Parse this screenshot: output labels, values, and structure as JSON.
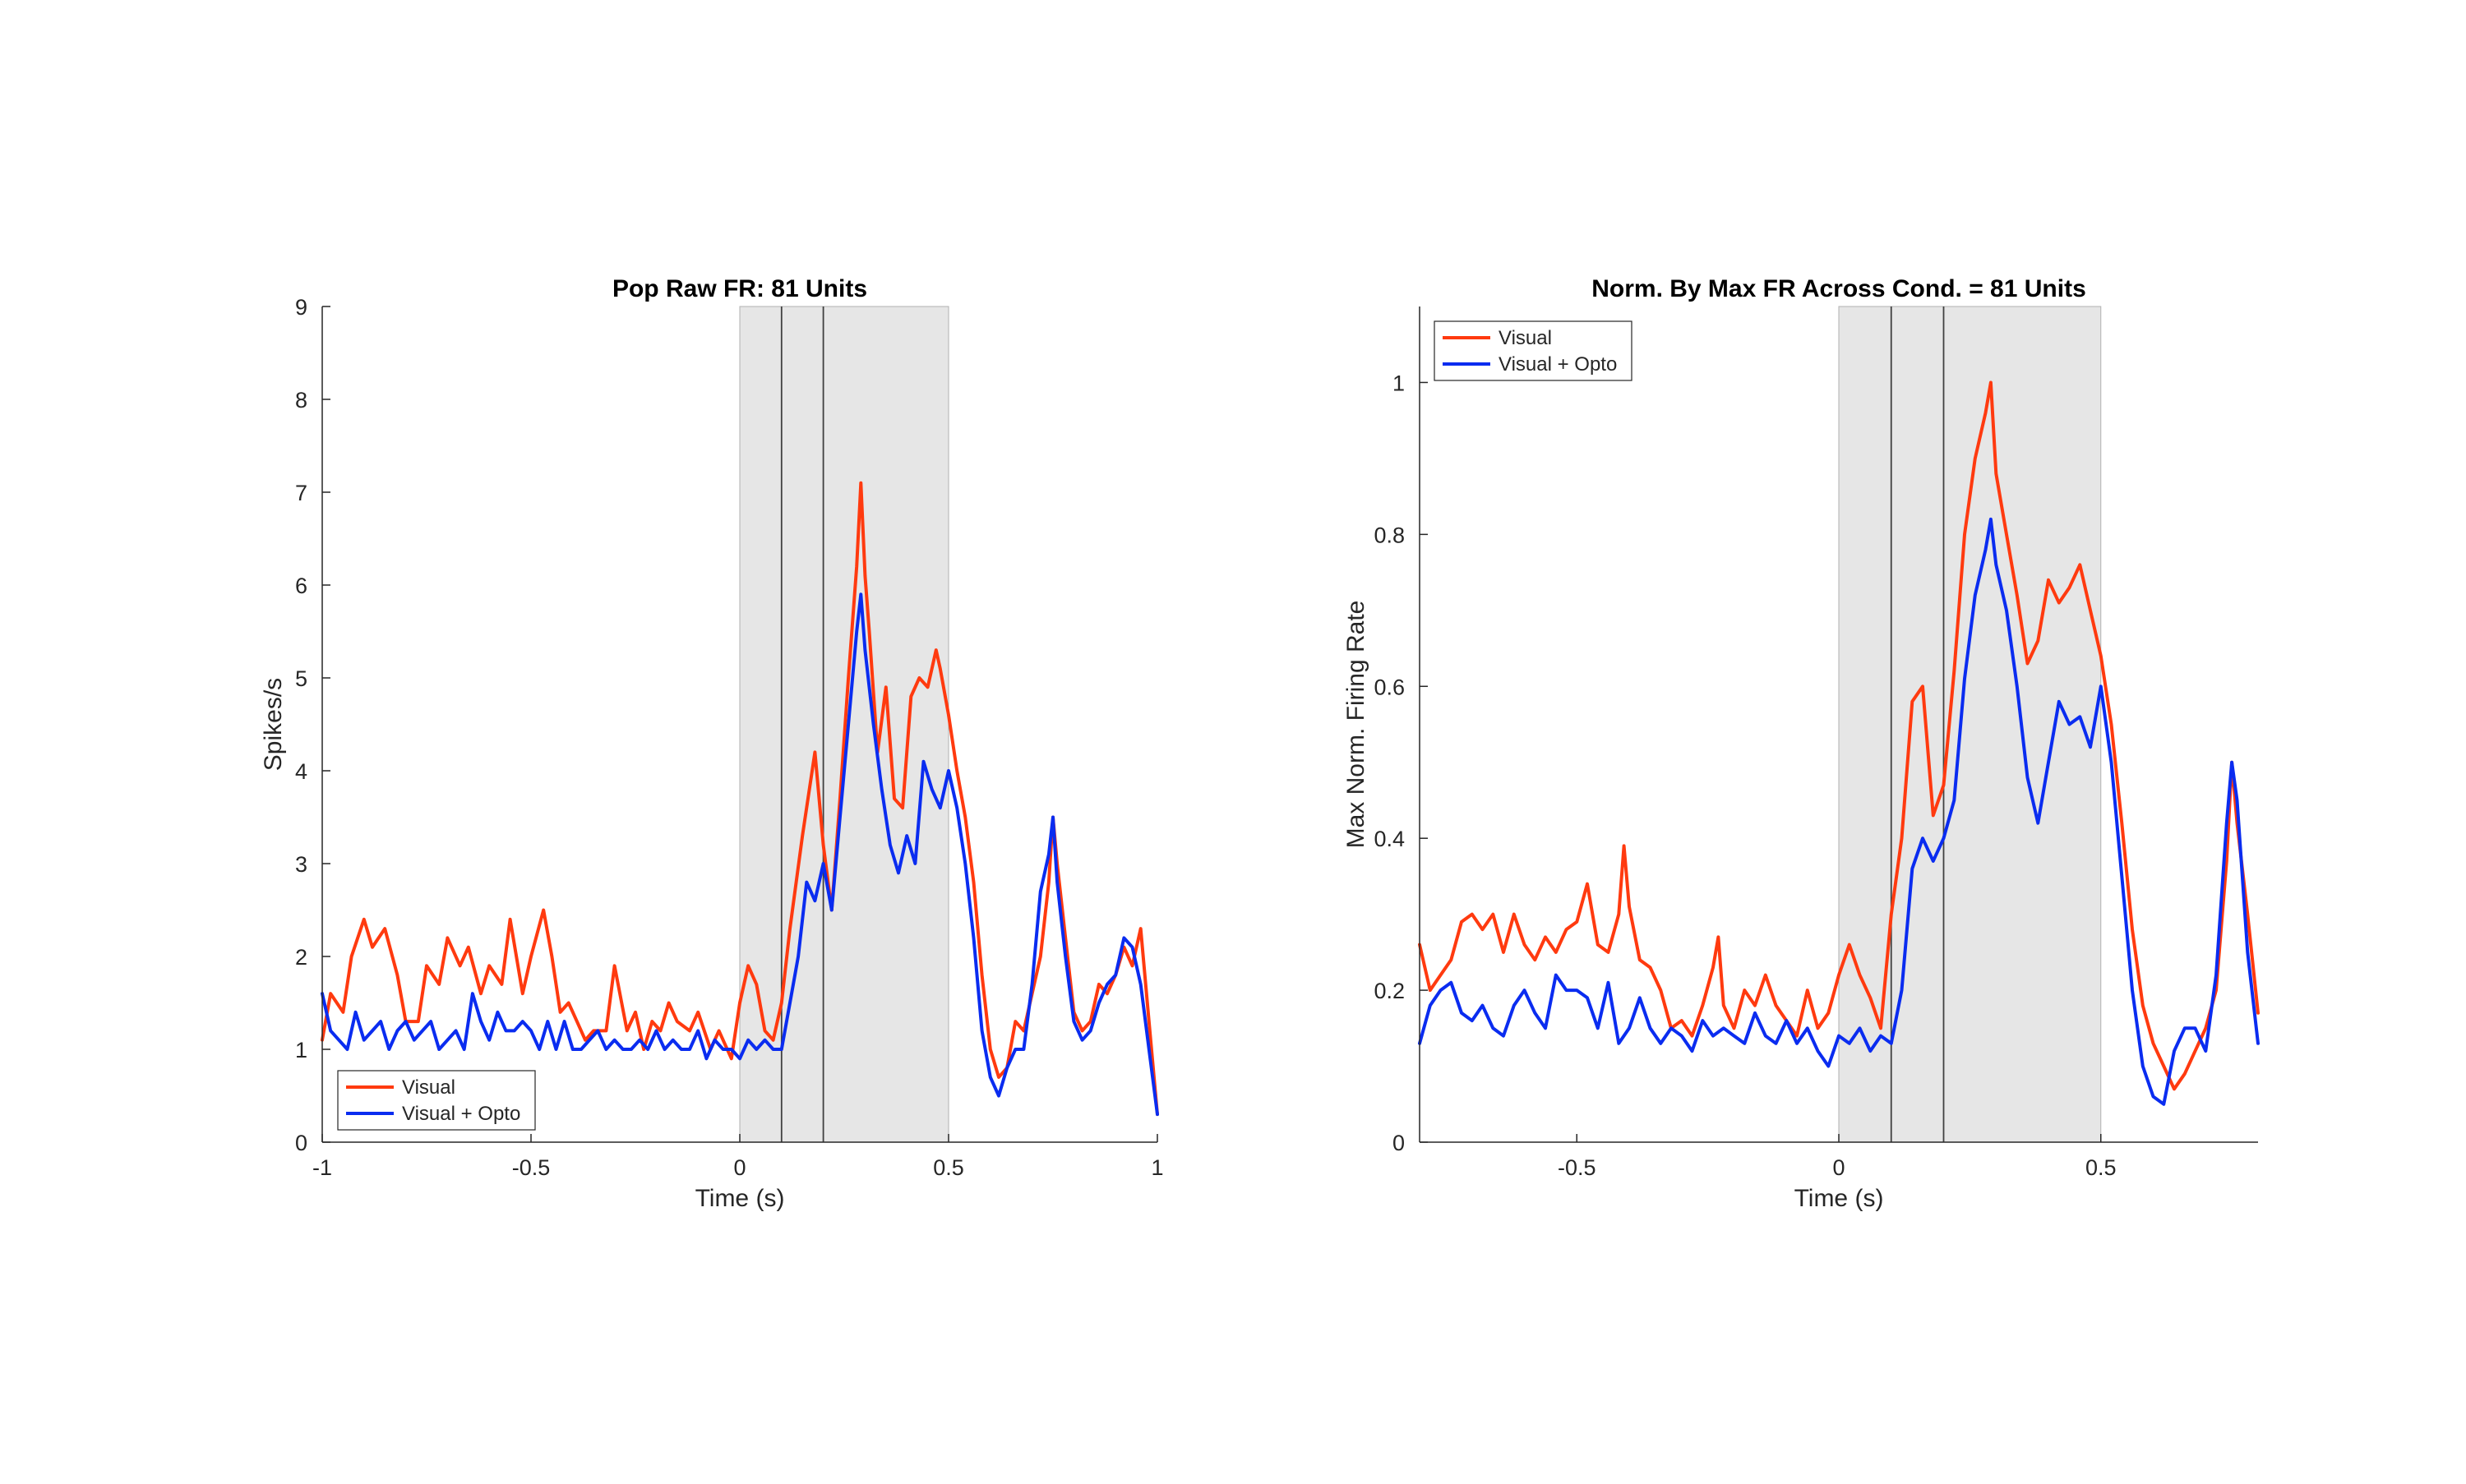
{
  "colors": {
    "visual": "#ff3a0f",
    "opto": "#0a2cf0",
    "shade": "#e6e6e6"
  },
  "chart_data": [
    {
      "type": "line",
      "title": "Pop Raw FR: 81 Units",
      "xlabel": "Time (s)",
      "ylabel": "Spikes/s",
      "xlim": [
        -1,
        1
      ],
      "ylim": [
        0,
        9
      ],
      "xticks": [
        -1,
        -0.5,
        0,
        0.5,
        1
      ],
      "xtick_labels": [
        "-1",
        "-0.5",
        "0",
        "0.5",
        "1"
      ],
      "yticks": [
        0,
        1,
        2,
        3,
        4,
        5,
        6,
        7,
        8,
        9
      ],
      "ytick_labels": [
        "0",
        "1",
        "2",
        "3",
        "4",
        "5",
        "6",
        "7",
        "8",
        "9"
      ],
      "shaded_interval": [
        0,
        0.5
      ],
      "vertical_markers": [
        0.1,
        0.2
      ],
      "legend": "bottom-left",
      "grid": false,
      "series": [
        {
          "name": "Visual",
          "color": "#ff3a0f",
          "x": [
            -1,
            -0.98,
            -0.95,
            -0.93,
            -0.9,
            -0.88,
            -0.85,
            -0.82,
            -0.8,
            -0.77,
            -0.75,
            -0.72,
            -0.7,
            -0.67,
            -0.65,
            -0.62,
            -0.6,
            -0.57,
            -0.55,
            -0.52,
            -0.5,
            -0.47,
            -0.45,
            -0.43,
            -0.41,
            -0.39,
            -0.37,
            -0.35,
            -0.32,
            -0.3,
            -0.27,
            -0.25,
            -0.23,
            -0.21,
            -0.19,
            -0.17,
            -0.15,
            -0.12,
            -0.1,
            -0.07,
            -0.05,
            -0.02,
            0,
            0.02,
            0.04,
            0.06,
            0.08,
            0.1,
            0.12,
            0.15,
            0.18,
            0.2,
            0.22,
            0.24,
            0.26,
            0.28,
            0.29,
            0.3,
            0.31,
            0.33,
            0.35,
            0.37,
            0.39,
            0.41,
            0.43,
            0.45,
            0.47,
            0.48,
            0.5,
            0.52,
            0.54,
            0.56,
            0.58,
            0.6,
            0.62,
            0.64,
            0.66,
            0.68,
            0.7,
            0.72,
            0.74,
            0.75,
            0.76,
            0.78,
            0.8,
            0.82,
            0.84,
            0.86,
            0.88,
            0.9,
            0.92,
            0.94,
            0.96,
            0.98,
            1
          ],
          "y": [
            1.1,
            1.6,
            1.4,
            2.0,
            2.4,
            2.1,
            2.3,
            1.8,
            1.3,
            1.3,
            1.9,
            1.7,
            2.2,
            1.9,
            2.1,
            1.6,
            1.9,
            1.7,
            2.4,
            1.6,
            2.0,
            2.5,
            2.0,
            1.4,
            1.5,
            1.3,
            1.1,
            1.2,
            1.2,
            1.9,
            1.2,
            1.4,
            1.0,
            1.3,
            1.2,
            1.5,
            1.3,
            1.2,
            1.4,
            1.0,
            1.2,
            0.9,
            1.5,
            1.9,
            1.7,
            1.2,
            1.1,
            1.5,
            2.3,
            3.3,
            4.2,
            3.2,
            2.5,
            3.7,
            5.0,
            6.2,
            7.1,
            6.1,
            5.5,
            4.2,
            4.9,
            3.7,
            3.6,
            4.8,
            5.0,
            4.9,
            5.3,
            5.1,
            4.6,
            4.0,
            3.5,
            2.8,
            1.8,
            1.0,
            0.7,
            0.8,
            1.3,
            1.2,
            1.6,
            2.0,
            2.8,
            3.5,
            3.0,
            2.2,
            1.4,
            1.2,
            1.3,
            1.7,
            1.6,
            1.8,
            2.1,
            1.9,
            2.3,
            1.3,
            0.3
          ]
        },
        {
          "name": "Visual + Opto",
          "color": "#0a2cf0",
          "x": [
            -1,
            -0.98,
            -0.96,
            -0.94,
            -0.92,
            -0.9,
            -0.88,
            -0.86,
            -0.84,
            -0.82,
            -0.8,
            -0.78,
            -0.76,
            -0.74,
            -0.72,
            -0.7,
            -0.68,
            -0.66,
            -0.64,
            -0.62,
            -0.6,
            -0.58,
            -0.56,
            -0.54,
            -0.52,
            -0.5,
            -0.48,
            -0.46,
            -0.44,
            -0.42,
            -0.4,
            -0.38,
            -0.36,
            -0.34,
            -0.32,
            -0.3,
            -0.28,
            -0.26,
            -0.24,
            -0.22,
            -0.2,
            -0.18,
            -0.16,
            -0.14,
            -0.12,
            -0.1,
            -0.08,
            -0.06,
            -0.04,
            -0.02,
            0,
            0.02,
            0.04,
            0.06,
            0.08,
            0.1,
            0.12,
            0.14,
            0.16,
            0.18,
            0.2,
            0.22,
            0.24,
            0.26,
            0.28,
            0.29,
            0.3,
            0.32,
            0.34,
            0.36,
            0.38,
            0.4,
            0.42,
            0.44,
            0.46,
            0.48,
            0.5,
            0.52,
            0.54,
            0.56,
            0.58,
            0.6,
            0.62,
            0.64,
            0.66,
            0.68,
            0.7,
            0.72,
            0.74,
            0.75,
            0.76,
            0.78,
            0.8,
            0.82,
            0.84,
            0.86,
            0.88,
            0.9,
            0.92,
            0.94,
            0.96,
            0.98,
            1
          ],
          "y": [
            1.6,
            1.2,
            1.1,
            1.0,
            1.4,
            1.1,
            1.2,
            1.3,
            1.0,
            1.2,
            1.3,
            1.1,
            1.2,
            1.3,
            1.0,
            1.1,
            1.2,
            1.0,
            1.6,
            1.3,
            1.1,
            1.4,
            1.2,
            1.2,
            1.3,
            1.2,
            1.0,
            1.3,
            1.0,
            1.3,
            1.0,
            1.0,
            1.1,
            1.2,
            1.0,
            1.1,
            1.0,
            1.0,
            1.1,
            1.0,
            1.2,
            1.0,
            1.1,
            1.0,
            1.0,
            1.2,
            0.9,
            1.1,
            1.0,
            1.0,
            0.9,
            1.1,
            1.0,
            1.1,
            1.0,
            1.0,
            1.5,
            2.0,
            2.8,
            2.6,
            3.0,
            2.5,
            3.5,
            4.5,
            5.5,
            5.9,
            5.3,
            4.5,
            3.8,
            3.2,
            2.9,
            3.3,
            3.0,
            4.1,
            3.8,
            3.6,
            4.0,
            3.6,
            3.0,
            2.2,
            1.2,
            0.7,
            0.5,
            0.8,
            1.0,
            1.0,
            1.7,
            2.7,
            3.1,
            3.5,
            2.8,
            2.0,
            1.3,
            1.1,
            1.2,
            1.5,
            1.7,
            1.8,
            2.2,
            2.1,
            1.7,
            1.0,
            0.3
          ]
        }
      ]
    },
    {
      "type": "line",
      "title": "Norm. By Max FR Across Cond. = 81 Units",
      "xlabel": "Time (s)",
      "ylabel": "Max Norm. Firing Rate",
      "xlim": [
        -0.8,
        0.8
      ],
      "ylim": [
        0,
        1.1
      ],
      "xticks": [
        -0.5,
        0,
        0.5
      ],
      "xtick_labels": [
        "-0.5",
        "0",
        "0.5"
      ],
      "yticks": [
        0,
        0.2,
        0.4,
        0.6,
        0.8,
        1
      ],
      "ytick_labels": [
        "0",
        "0.2",
        "0.4",
        "0.6",
        "0.8",
        "1"
      ],
      "shaded_interval": [
        0,
        0.5
      ],
      "vertical_markers": [
        0.1,
        0.2
      ],
      "legend": "top-left",
      "grid": false,
      "series": [
        {
          "name": "Visual",
          "color": "#ff3a0f",
          "x": [
            -0.8,
            -0.78,
            -0.76,
            -0.74,
            -0.72,
            -0.7,
            -0.68,
            -0.66,
            -0.64,
            -0.62,
            -0.6,
            -0.58,
            -0.56,
            -0.54,
            -0.52,
            -0.5,
            -0.48,
            -0.46,
            -0.44,
            -0.42,
            -0.41,
            -0.4,
            -0.38,
            -0.36,
            -0.34,
            -0.32,
            -0.3,
            -0.28,
            -0.26,
            -0.24,
            -0.23,
            -0.22,
            -0.2,
            -0.18,
            -0.16,
            -0.14,
            -0.12,
            -0.1,
            -0.08,
            -0.06,
            -0.04,
            -0.02,
            0,
            0.02,
            0.04,
            0.06,
            0.08,
            0.1,
            0.12,
            0.14,
            0.16,
            0.18,
            0.2,
            0.22,
            0.24,
            0.26,
            0.28,
            0.29,
            0.3,
            0.32,
            0.34,
            0.36,
            0.38,
            0.4,
            0.42,
            0.44,
            0.46,
            0.48,
            0.5,
            0.52,
            0.54,
            0.56,
            0.58,
            0.6,
            0.62,
            0.64,
            0.66,
            0.68,
            0.7,
            0.72,
            0.74,
            0.75,
            0.76,
            0.78,
            0.8
          ],
          "y": [
            0.26,
            0.2,
            0.22,
            0.24,
            0.29,
            0.3,
            0.28,
            0.3,
            0.25,
            0.3,
            0.26,
            0.24,
            0.27,
            0.25,
            0.28,
            0.29,
            0.34,
            0.26,
            0.25,
            0.3,
            0.39,
            0.31,
            0.24,
            0.23,
            0.2,
            0.15,
            0.16,
            0.14,
            0.18,
            0.23,
            0.27,
            0.18,
            0.15,
            0.2,
            0.18,
            0.22,
            0.18,
            0.16,
            0.14,
            0.2,
            0.15,
            0.17,
            0.22,
            0.26,
            0.22,
            0.19,
            0.15,
            0.3,
            0.4,
            0.58,
            0.6,
            0.43,
            0.47,
            0.62,
            0.8,
            0.9,
            0.96,
            1.0,
            0.88,
            0.8,
            0.72,
            0.63,
            0.66,
            0.74,
            0.71,
            0.73,
            0.76,
            0.7,
            0.64,
            0.55,
            0.42,
            0.28,
            0.18,
            0.13,
            0.1,
            0.07,
            0.09,
            0.12,
            0.15,
            0.2,
            0.37,
            0.5,
            0.42,
            0.3,
            0.17
          ]
        },
        {
          "name": "Visual + Opto",
          "color": "#0a2cf0",
          "x": [
            -0.8,
            -0.78,
            -0.76,
            -0.74,
            -0.72,
            -0.7,
            -0.68,
            -0.66,
            -0.64,
            -0.62,
            -0.6,
            -0.58,
            -0.56,
            -0.54,
            -0.52,
            -0.5,
            -0.48,
            -0.46,
            -0.44,
            -0.42,
            -0.4,
            -0.38,
            -0.36,
            -0.34,
            -0.32,
            -0.3,
            -0.28,
            -0.26,
            -0.24,
            -0.22,
            -0.2,
            -0.18,
            -0.16,
            -0.14,
            -0.12,
            -0.1,
            -0.08,
            -0.06,
            -0.04,
            -0.02,
            0,
            0.02,
            0.04,
            0.06,
            0.08,
            0.1,
            0.12,
            0.14,
            0.16,
            0.18,
            0.2,
            0.22,
            0.24,
            0.26,
            0.28,
            0.29,
            0.3,
            0.32,
            0.34,
            0.36,
            0.38,
            0.4,
            0.42,
            0.44,
            0.46,
            0.48,
            0.5,
            0.52,
            0.54,
            0.56,
            0.58,
            0.6,
            0.62,
            0.64,
            0.66,
            0.68,
            0.7,
            0.72,
            0.74,
            0.75,
            0.76,
            0.78,
            0.8
          ],
          "y": [
            0.13,
            0.18,
            0.2,
            0.21,
            0.17,
            0.16,
            0.18,
            0.15,
            0.14,
            0.18,
            0.2,
            0.17,
            0.15,
            0.22,
            0.2,
            0.2,
            0.19,
            0.15,
            0.21,
            0.13,
            0.15,
            0.19,
            0.15,
            0.13,
            0.15,
            0.14,
            0.12,
            0.16,
            0.14,
            0.15,
            0.14,
            0.13,
            0.17,
            0.14,
            0.13,
            0.16,
            0.13,
            0.15,
            0.12,
            0.1,
            0.14,
            0.13,
            0.15,
            0.12,
            0.14,
            0.13,
            0.2,
            0.36,
            0.4,
            0.37,
            0.4,
            0.45,
            0.61,
            0.72,
            0.78,
            0.82,
            0.76,
            0.7,
            0.6,
            0.48,
            0.42,
            0.5,
            0.58,
            0.55,
            0.56,
            0.52,
            0.6,
            0.5,
            0.35,
            0.2,
            0.1,
            0.06,
            0.05,
            0.12,
            0.15,
            0.15,
            0.12,
            0.22,
            0.42,
            0.5,
            0.45,
            0.25,
            0.13
          ]
        }
      ]
    }
  ]
}
